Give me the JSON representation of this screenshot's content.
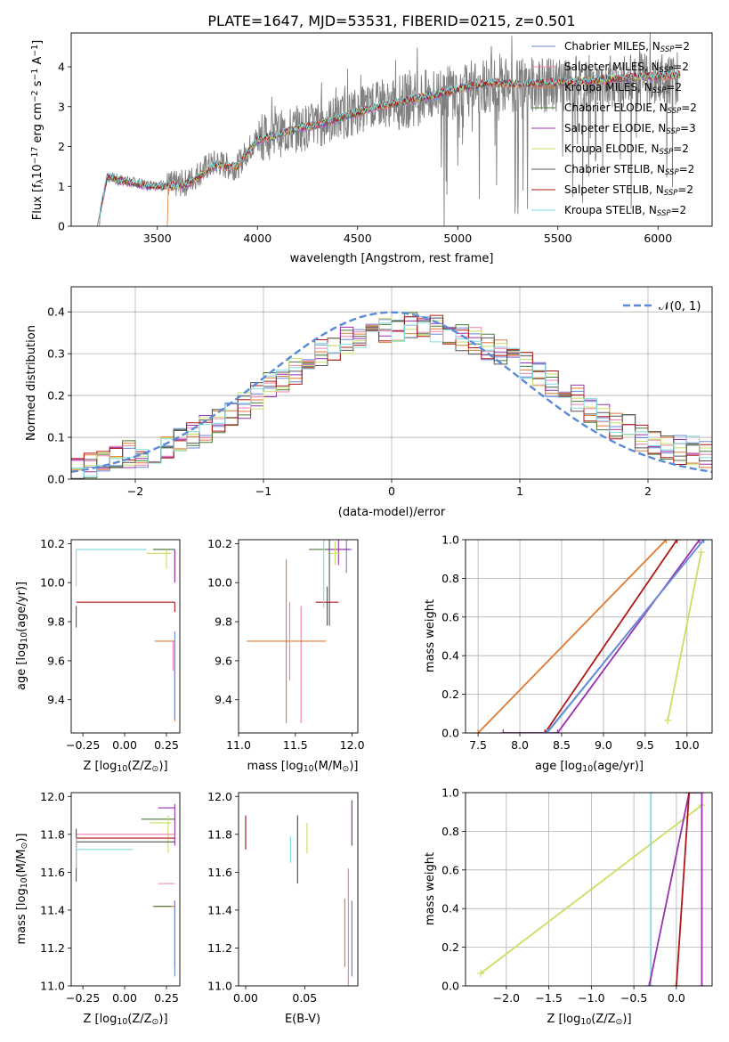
{
  "figure": {
    "title": "PLATE=1647, MJD=53531, FIBERID=0215, z=0.501"
  },
  "models": [
    {
      "name": "Chabrier MILES, N$_{SSP}$=2",
      "label_main": "Chabrier MILES, N",
      "label_sub": "SSP",
      "label_end": "=2",
      "color": "#6b85d6"
    },
    {
      "name": "Salpeter MILES, N$_{SSP}$=2",
      "label_main": "Salpeter MILES, N",
      "label_sub": "SSP",
      "label_end": "=2",
      "color": "#f07fb0"
    },
    {
      "name": "Kroupa MILES, N$_{SSP}$=2",
      "label_main": "Kroupa MILES, N",
      "label_sub": "SSP",
      "label_end": "=2",
      "color": "#e07a30"
    },
    {
      "name": "Chabrier ELODIE, N$_{SSP}$=2",
      "label_main": "Chabrier ELODIE, N",
      "label_sub": "SSP",
      "label_end": "=2",
      "color": "#4a7a3a"
    },
    {
      "name": "Salpeter ELODIE, N$_{SSP}$=3",
      "label_main": "Salpeter ELODIE, N",
      "label_sub": "SSP",
      "label_end": "=3",
      "color": "#9b30b0"
    },
    {
      "name": "Kroupa ELODIE, N$_{SSP}$=2",
      "label_main": "Kroupa ELODIE, N",
      "label_sub": "SSP",
      "label_end": "=2",
      "color": "#c8e060"
    },
    {
      "name": "Chabrier STELIB, N$_{SSP}$=2",
      "label_main": "Chabrier STELIB, N",
      "label_sub": "SSP",
      "label_end": "=2",
      "color": "#555555"
    },
    {
      "name": "Salpeter STELIB, N$_{SSP}$=2",
      "label_main": "Salpeter STELIB, N",
      "label_sub": "SSP",
      "label_end": "=2",
      "color": "#b01818"
    },
    {
      "name": "Kroupa STELIB, N$_{SSP}$=2",
      "label_main": "Kroupa STELIB, N",
      "label_sub": "SSP",
      "label_end": "=2",
      "color": "#80dce0"
    }
  ],
  "colors": {
    "data_line": "#7f7f7f",
    "normal_curve": "#5b8ad6",
    "grid": "#b0b0b0"
  },
  "chart_data": [
    {
      "id": "spectrum",
      "type": "line",
      "xlabel": "wavelength [Angstrom, rest frame]",
      "ylabel_main": "Flux [f",
      "ylabel_sub": "λ",
      "ylabel_rest": "10",
      "ylabel_exp": "−17",
      "ylabel_tail": " erg cm",
      "ylabel_exp2": "−2",
      "ylabel_mid": " s",
      "ylabel_exp3": "−1",
      "ylabel_mid2": " A",
      "ylabel_exp4": "−1",
      "ylabel_close": "]",
      "xlim": [
        3070,
        6270
      ],
      "ylim": [
        0,
        4.85
      ],
      "xticks": [
        "3500",
        "4000",
        "4500",
        "5000",
        "5500",
        "6000"
      ],
      "xtick_values": [
        3500,
        4000,
        4500,
        5000,
        5500,
        6000
      ],
      "yticks": [
        "0",
        "1",
        "2",
        "3",
        "4"
      ],
      "ytick_values": [
        0,
        1,
        2,
        3,
        4
      ],
      "grid": false,
      "legend": "top-right",
      "data_x": [
        3200,
        3250,
        3300,
        3350,
        3400,
        3450,
        3500,
        3550,
        3600,
        3650,
        3700,
        3750,
        3800,
        3850,
        3900,
        3950,
        4000,
        4100,
        4200,
        4300,
        4400,
        4500,
        4600,
        4700,
        4800,
        4900,
        5000,
        5100,
        5200,
        5300,
        5400,
        5500,
        5600,
        5700,
        5800,
        5900,
        6000,
        6100
      ],
      "data_y": [
        0,
        1.25,
        1.2,
        1.15,
        1.1,
        1.05,
        1.05,
        1.05,
        1.05,
        1.1,
        1.3,
        1.5,
        1.6,
        1.5,
        1.5,
        1.9,
        2.2,
        2.3,
        2.45,
        2.55,
        2.7,
        2.9,
        3.05,
        3.1,
        3.2,
        3.3,
        3.4,
        3.5,
        3.55,
        3.5,
        3.55,
        3.55,
        3.6,
        3.6,
        3.65,
        3.7,
        3.7,
        3.75
      ],
      "model_x": [
        3200,
        3250,
        3300,
        3350,
        3400,
        3450,
        3500,
        3550,
        3600,
        3650,
        3700,
        3750,
        3800,
        3850,
        3900,
        3950,
        4000,
        4100,
        4200,
        4300,
        4400,
        4500,
        4600,
        4700,
        4800,
        4900,
        5000,
        5100,
        5200,
        5300,
        5400,
        5500,
        5600,
        5700,
        5800,
        5900,
        6000,
        6100
      ],
      "model_y": [
        0,
        1.25,
        1.15,
        1.1,
        1.05,
        1.0,
        1.0,
        1.0,
        1.0,
        1.05,
        1.2,
        1.4,
        1.55,
        1.5,
        1.5,
        1.85,
        2.15,
        2.3,
        2.45,
        2.55,
        2.7,
        2.85,
        3.0,
        3.1,
        3.2,
        3.3,
        3.45,
        3.55,
        3.6,
        3.55,
        3.6,
        3.6,
        3.65,
        3.65,
        3.7,
        3.75,
        3.75,
        3.8
      ]
    },
    {
      "id": "residual_hist",
      "type": "line",
      "xlabel": "(data-model)/error",
      "ylabel": "Normed distribution",
      "xlim": [
        -2.5,
        2.5
      ],
      "ylim": [
        0,
        0.46
      ],
      "xticks": [
        "−2",
        "−1",
        "0",
        "1",
        "2"
      ],
      "xtick_values": [
        -2,
        -1,
        0,
        1,
        2
      ],
      "yticks": [
        "0.0",
        "0.1",
        "0.2",
        "0.3",
        "0.4"
      ],
      "ytick_values": [
        0,
        0.1,
        0.2,
        0.3,
        0.4
      ],
      "grid": true,
      "legend": "top-right",
      "legend_label": "𝒩(0, 1)",
      "bin_edges": [
        -2.5,
        -2.4,
        -2.3,
        -2.2,
        -2.1,
        -2.0,
        -1.9,
        -1.8,
        -1.7,
        -1.6,
        -1.5,
        -1.4,
        -1.3,
        -1.2,
        -1.1,
        -1.0,
        -0.9,
        -0.8,
        -0.7,
        -0.6,
        -0.5,
        -0.4,
        -0.3,
        -0.2,
        -0.1,
        0.0,
        0.1,
        0.2,
        0.3,
        0.4,
        0.5,
        0.6,
        0.7,
        0.8,
        0.9,
        1.0,
        1.1,
        1.2,
        1.3,
        1.4,
        1.5,
        1.6,
        1.7,
        1.8,
        1.9,
        2.0,
        2.1,
        2.2,
        2.3,
        2.4,
        2.5
      ],
      "hist_base": [
        0.02,
        0.03,
        0.04,
        0.05,
        0.06,
        0.06,
        0.07,
        0.08,
        0.09,
        0.1,
        0.12,
        0.14,
        0.16,
        0.18,
        0.2,
        0.22,
        0.24,
        0.26,
        0.28,
        0.3,
        0.31,
        0.33,
        0.34,
        0.35,
        0.36,
        0.36,
        0.37,
        0.37,
        0.36,
        0.35,
        0.34,
        0.33,
        0.32,
        0.3,
        0.29,
        0.27,
        0.25,
        0.23,
        0.21,
        0.19,
        0.17,
        0.15,
        0.13,
        0.12,
        0.1,
        0.09,
        0.08,
        0.07,
        0.07,
        0.06
      ]
    },
    {
      "id": "age_vs_Z",
      "type": "scatter",
      "xlabel_main": "Z [log",
      "xlabel_sub": "10",
      "xlabel_rest": "(Z/Z",
      "xlabel_sub2": "⊙",
      "xlabel_close": ")]",
      "ylabel_main": "age  [log",
      "ylabel_sub": "10",
      "ylabel_rest": "(age/yr)]",
      "xlim": [
        -0.32,
        0.33
      ],
      "ylim": [
        9.23,
        10.22
      ],
      "xticks": [
        "−0.25",
        "0.00",
        "0.25"
      ],
      "xtick_values": [
        -0.25,
        0,
        0.25
      ],
      "yticks": [
        "9.4",
        "9.6",
        "9.8",
        "10.0",
        "10.2"
      ],
      "ytick_values": [
        9.4,
        9.6,
        9.8,
        10.0,
        10.2
      ],
      "grid": false
    },
    {
      "id": "age_vs_mass",
      "type": "scatter",
      "xlabel_main": "mass [log",
      "xlabel_sub": "10",
      "xlabel_rest": "(M/M",
      "xlabel_sub2": "⊙",
      "xlabel_close": ")]",
      "xlim": [
        11.0,
        12.05
      ],
      "ylim": [
        9.23,
        10.22
      ],
      "xticks": [
        "11.0",
        "11.5",
        "12.0"
      ],
      "xtick_values": [
        11,
        11.5,
        12
      ],
      "yticks": [
        "9.4",
        "9.6",
        "9.8",
        "10.0",
        "10.2"
      ],
      "ytick_values": [
        9.4,
        9.6,
        9.8,
        10.0,
        10.2
      ],
      "grid": false
    },
    {
      "id": "massweight_vs_age",
      "type": "line",
      "xlabel_main": "age  [log",
      "xlabel_sub": "10",
      "xlabel_rest": "(age/yr)]",
      "ylabel": "mass weight",
      "xlim": [
        7.35,
        10.3
      ],
      "ylim": [
        0,
        1.0
      ],
      "xticks": [
        "7.5",
        "8.0",
        "8.5",
        "9.0",
        "9.5",
        "10.0"
      ],
      "xtick_values": [
        7.5,
        8,
        8.5,
        9,
        9.5,
        10
      ],
      "yticks": [
        "0.0",
        "0.2",
        "0.4",
        "0.6",
        "0.8",
        "1.0"
      ],
      "ytick_values": [
        0,
        0.2,
        0.4,
        0.6,
        0.8,
        1.0
      ],
      "grid": true,
      "series": [
        {
          "model": 2,
          "x": [
            7.5,
            9.75
          ],
          "y": [
            0.0,
            1.0
          ]
        },
        {
          "model": 7,
          "x": [
            8.3,
            9.88
          ],
          "y": [
            0.0,
            1.0
          ]
        },
        {
          "model": 4,
          "x": [
            7.8,
            8.45,
            10.15
          ],
          "y": [
            0.0,
            0.0,
            1.0
          ]
        },
        {
          "model": 8,
          "x": [
            8.33,
            10.2
          ],
          "y": [
            0.0,
            1.0
          ]
        },
        {
          "model": 0,
          "x": [
            8.32,
            10.2
          ],
          "y": [
            0.0,
            1.0
          ]
        },
        {
          "model": 5,
          "x": [
            9.77,
            10.17
          ],
          "y": [
            0.065,
            0.935
          ]
        }
      ]
    },
    {
      "id": "mass_vs_Z",
      "type": "scatter",
      "xlabel_main": "Z [log",
      "xlabel_sub": "10",
      "xlabel_rest": "(Z/Z",
      "xlabel_sub2": "⊙",
      "xlabel_close": ")]",
      "ylabel_main": "mass [log",
      "ylabel_sub": "10",
      "ylabel_rest": "(M/M",
      "ylabel_sub2": "⊙",
      "ylabel_close": ")]",
      "xlim": [
        -0.32,
        0.33
      ],
      "ylim": [
        11.0,
        12.02
      ],
      "xticks": [
        "−0.25",
        "0.00",
        "0.25"
      ],
      "xtick_values": [
        -0.25,
        0,
        0.25
      ],
      "yticks": [
        "11.0",
        "11.2",
        "11.4",
        "11.6",
        "11.8",
        "12.0"
      ],
      "ytick_values": [
        11,
        11.2,
        11.4,
        11.6,
        11.8,
        12
      ],
      "grid": false
    },
    {
      "id": "mass_vs_EBV",
      "type": "scatter",
      "xlabel": "E(B-V)",
      "xlim": [
        -0.006,
        0.095
      ],
      "ylim": [
        11.0,
        12.02
      ],
      "xticks": [
        "0.00",
        "0.05"
      ],
      "xtick_values": [
        0,
        0.05
      ],
      "yticks": [
        "11.0",
        "11.2",
        "11.4",
        "11.6",
        "11.8",
        "12.0"
      ],
      "ytick_values": [
        11,
        11.2,
        11.4,
        11.6,
        11.8,
        12
      ],
      "grid": false,
      "points": [
        {
          "model": 7,
          "x": 0.0,
          "y": 11.81,
          "dy": 0.09
        },
        {
          "model": 8,
          "x": 0.038,
          "y": 11.72,
          "dy": 0.07
        },
        {
          "model": 6,
          "x": 0.044,
          "y": 11.72,
          "dy": 0.18
        },
        {
          "model": 5,
          "x": 0.052,
          "y": 11.78,
          "dy": 0.08
        },
        {
          "model": 2,
          "x": 0.084,
          "y": 11.28,
          "dy": 0.18
        },
        {
          "model": 1,
          "x": 0.087,
          "y": 11.3,
          "dy": 0.32
        },
        {
          "model": 4,
          "x": 0.09,
          "y": 11.86,
          "dy": 0.12
        },
        {
          "model": 0,
          "x": 0.09,
          "y": 11.25,
          "dy": 0.2
        }
      ]
    },
    {
      "id": "massweight_vs_Z",
      "type": "line",
      "xlabel_main": "Z [log",
      "xlabel_sub": "10",
      "xlabel_rest": "(Z/Z",
      "xlabel_sub2": "⊙",
      "xlabel_close": ")]",
      "ylabel": "mass weight",
      "xlim": [
        -2.48,
        0.42
      ],
      "ylim": [
        0,
        1.0
      ],
      "xticks": [
        "−2.0",
        "−1.5",
        "−1.0",
        "−0.5",
        "0.0"
      ],
      "xtick_values": [
        -2,
        -1.5,
        -1,
        -0.5,
        0
      ],
      "yticks": [
        "0.0",
        "0.2",
        "0.4",
        "0.6",
        "0.8",
        "1.0"
      ],
      "ytick_values": [
        0,
        0.2,
        0.4,
        0.6,
        0.8,
        1.0
      ],
      "grid": true,
      "series": [
        {
          "model": 5,
          "x": [
            -2.3,
            0.3
          ],
          "y": [
            0.065,
            0.935
          ]
        },
        {
          "model": 8,
          "x": [
            -0.3,
            -0.3
          ],
          "y": [
            0.0,
            1.0
          ]
        },
        {
          "model": 4,
          "x": [
            -0.32,
            0.15,
            0.3,
            0.3
          ],
          "y": [
            0.0,
            1.0,
            1.0,
            0.0
          ]
        },
        {
          "model": 7,
          "x": [
            0.0,
            0.15
          ],
          "y": [
            0.0,
            1.0
          ]
        }
      ]
    }
  ]
}
